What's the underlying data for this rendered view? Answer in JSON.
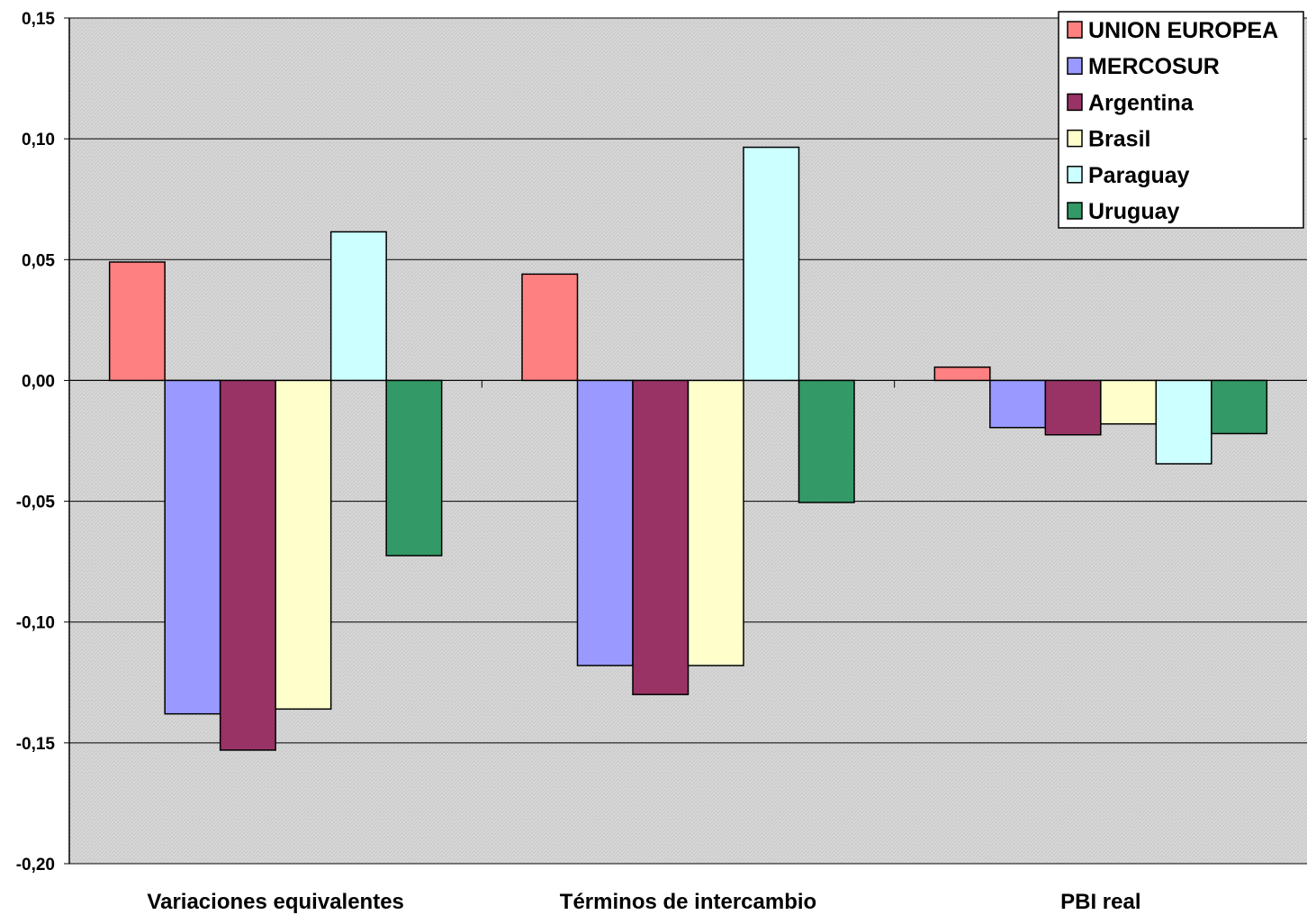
{
  "chart_data": {
    "type": "bar",
    "categories": [
      "Variaciones equivalentes",
      "Términos de intercambio",
      "PBI real"
    ],
    "series": [
      {
        "name": "UNION EUROPEA",
        "color": "#FF8080",
        "values": [
          0.049,
          0.044,
          0.0055
        ]
      },
      {
        "name": "MERCOSUR",
        "color": "#9999FF",
        "values": [
          -0.138,
          -0.118,
          -0.0195
        ]
      },
      {
        "name": "Argentina",
        "color": "#993366",
        "values": [
          -0.153,
          -0.13,
          -0.0225
        ]
      },
      {
        "name": "Brasil",
        "color": "#FFFFCC",
        "values": [
          -0.136,
          -0.118,
          -0.018
        ]
      },
      {
        "name": "Paraguay",
        "color": "#CCFFFF",
        "values": [
          0.0615,
          0.0965,
          -0.0345
        ]
      },
      {
        "name": "Uruguay",
        "color": "#339966",
        "values": [
          -0.0725,
          -0.0505,
          -0.022
        ]
      }
    ],
    "ylim": [
      -0.2,
      0.15
    ],
    "yticks": [
      0.15,
      0.1,
      0.05,
      0.0,
      -0.05,
      -0.1,
      -0.15,
      -0.2
    ],
    "ytick_labels": [
      "0,15",
      "0,10",
      "0,05",
      "0,00",
      "-0,05",
      "-0,10",
      "-0,15",
      "-0,20"
    ],
    "grid": true,
    "legend_position": "top-right",
    "plot_background": "#D9D9D9"
  }
}
